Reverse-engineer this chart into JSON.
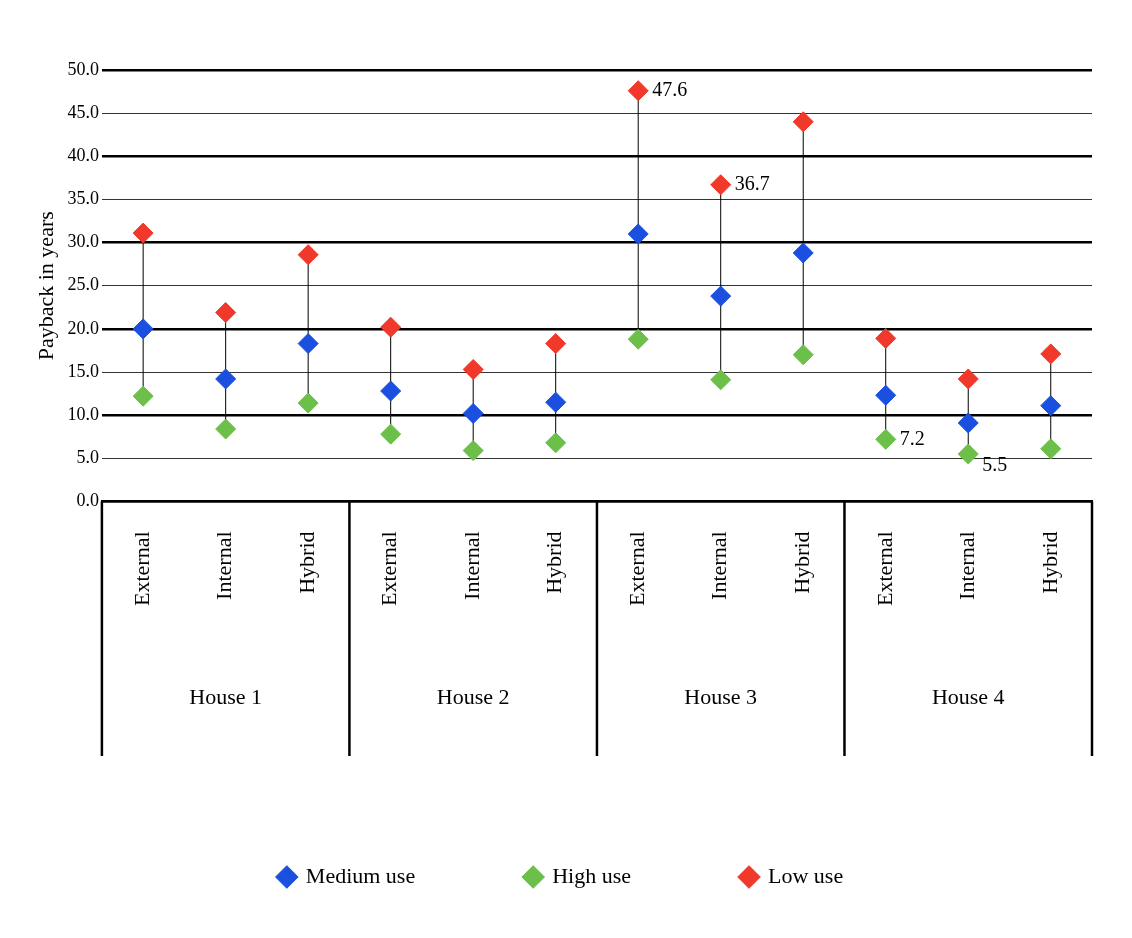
{
  "chart_data": {
    "type": "scatter",
    "ylabel": "Payback in years",
    "categories": [
      "External",
      "Internal",
      "Hybrid",
      "External",
      "Internal",
      "Hybrid",
      "External",
      "Internal",
      "Hybrid",
      "External",
      "Internal",
      "Hybrid"
    ],
    "annotations": [
      "House 1",
      "House 2",
      "House 3",
      "House 4"
    ],
    "series": [
      {
        "name": "Medium use",
        "color": "#1a4fe0",
        "values": [
          20.0,
          14.2,
          18.3,
          12.8,
          10.2,
          11.5,
          31.0,
          23.8,
          28.8,
          12.3,
          9.1,
          11.1
        ]
      },
      {
        "name": "High use",
        "color": "#6cc04a",
        "values": [
          12.2,
          8.4,
          11.4,
          7.8,
          5.9,
          6.8,
          18.8,
          14.1,
          17.0,
          7.2,
          5.5,
          6.1
        ],
        "value_labels": [
          null,
          null,
          null,
          null,
          null,
          null,
          null,
          null,
          null,
          "7.2",
          "5.5",
          null
        ]
      },
      {
        "name": "Low use",
        "color": "#f0382b",
        "values": [
          31.1,
          21.9,
          28.6,
          20.2,
          15.3,
          18.3,
          47.6,
          36.7,
          44.0,
          18.9,
          14.2,
          17.1
        ],
        "value_labels": [
          null,
          null,
          null,
          null,
          null,
          null,
          "47.6",
          "36.7",
          null,
          null,
          null,
          null
        ]
      }
    ],
    "ylim": [
      0,
      50
    ],
    "yticks": [
      {
        "value": 0,
        "label": "0.0"
      },
      {
        "value": 5,
        "label": "5.0"
      },
      {
        "value": 10,
        "label": "10.0"
      },
      {
        "value": 15,
        "label": "15.0"
      },
      {
        "value": 20,
        "label": "20.0"
      },
      {
        "value": 25,
        "label": "25.0"
      },
      {
        "value": 30,
        "label": "30.0"
      },
      {
        "value": 35,
        "label": "35.0"
      },
      {
        "value": 40,
        "label": "40.0"
      },
      {
        "value": 45,
        "label": "45.0"
      },
      {
        "value": 50,
        "label": "50.0"
      }
    ],
    "grid": "y",
    "legend": "bottom",
    "marker": "diamond"
  }
}
